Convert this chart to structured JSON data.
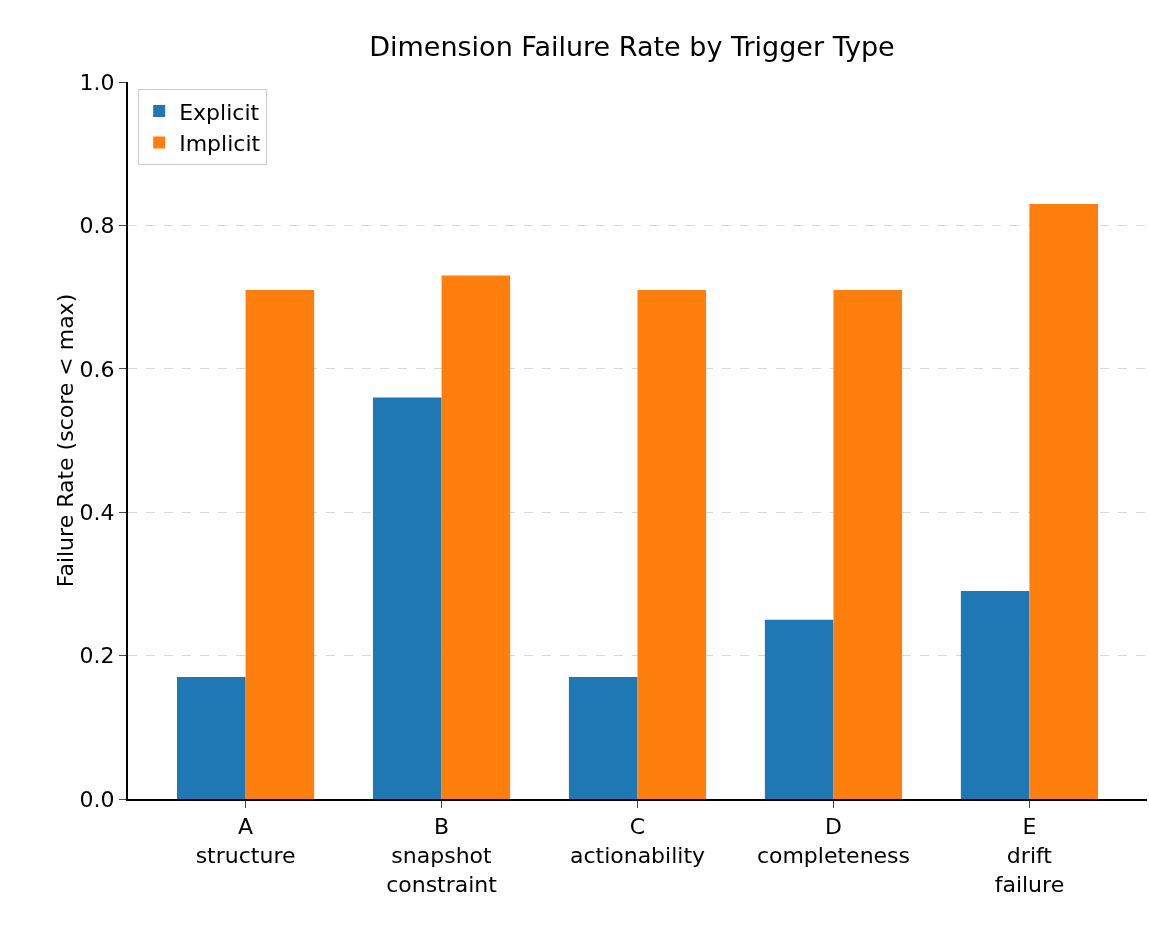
{
  "chart_data": {
    "type": "bar",
    "title": "Dimension Failure Rate by Trigger Type",
    "ylabel": "Failure Rate (score < max)",
    "categories": [
      "A\nstructure",
      "B\nsnapshot\nconstraint",
      "C\nactionability",
      "D\ncompleteness",
      "E\ndrift\nfailure"
    ],
    "series": [
      {
        "name": "Explicit",
        "color": "#1f77b4",
        "values": [
          0.17,
          0.56,
          0.17,
          0.25,
          0.29
        ]
      },
      {
        "name": "Implicit",
        "color": "#ff7f0e",
        "values": [
          0.71,
          0.73,
          0.71,
          0.71,
          0.83
        ]
      }
    ],
    "ylim": [
      0,
      1
    ],
    "yticks": [
      {
        "value": 0,
        "label": "0.0"
      },
      {
        "value": 0.2,
        "label": "0.2"
      },
      {
        "value": 0.4,
        "label": "0.4"
      },
      {
        "value": 0.6,
        "label": "0.6"
      },
      {
        "value": 0.8,
        "label": "0.8"
      },
      {
        "value": 1,
        "label": "1.0"
      }
    ],
    "grid": "y",
    "legend": "top left"
  }
}
